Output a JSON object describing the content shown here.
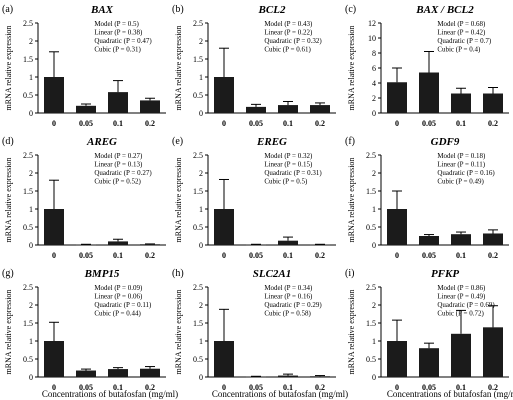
{
  "figure": {
    "xlabel": "Concentrations of butafosfan (mg/ml)",
    "ylabel": "mRNA relative expression"
  },
  "chart_data": [
    {
      "panel": "(a)",
      "title": "BAX",
      "type": "bar",
      "categories": [
        "0",
        "0.05",
        "0.1",
        "0.2"
      ],
      "values": [
        1.0,
        0.2,
        0.58,
        0.35
      ],
      "errors": [
        0.7,
        0.05,
        0.32,
        0.06
      ],
      "ylim": [
        0,
        2.5
      ],
      "yticks": [
        "0",
        "0.5",
        "1",
        "1.5",
        "2",
        "2.5"
      ],
      "stats": [
        "Model (P = 0.5)",
        "Linear (P = 0.38)",
        "Quadratic (P = 0.47)",
        "Cubic (P = 0.31)"
      ]
    },
    {
      "panel": "(b)",
      "title": "BCL2",
      "type": "bar",
      "categories": [
        "0",
        "0.05",
        "0.1",
        "0.2"
      ],
      "values": [
        1.0,
        0.17,
        0.22,
        0.22
      ],
      "errors": [
        0.8,
        0.07,
        0.1,
        0.06
      ],
      "ylim": [
        0,
        2.5
      ],
      "yticks": [
        "0",
        "0.5",
        "1",
        "1.5",
        "2",
        "2.5"
      ],
      "stats": [
        "Model (P = 0.43)",
        "Linear (P = 0.22)",
        "Quadratic (P = 0.32)",
        "Cubic (P = 0.61)"
      ]
    },
    {
      "panel": "(c)",
      "title": "BAX / BCL2",
      "type": "bar",
      "categories": [
        "0",
        "0.05",
        "0.1",
        "0.2"
      ],
      "values": [
        4.1,
        5.4,
        2.6,
        2.6
      ],
      "errors": [
        1.9,
        2.8,
        0.7,
        0.8
      ],
      "ylim": [
        0,
        12
      ],
      "yticks": [
        "0",
        "2",
        "4",
        "6",
        "8",
        "10",
        "12"
      ],
      "stats": [
        "Model (P = 0.68)",
        "Linear (P = 0.42)",
        "Quadratic (P = 0.7)",
        "Cubic (P = 0.4)"
      ]
    },
    {
      "panel": "(d)",
      "title": "AREG",
      "type": "bar",
      "categories": [
        "0",
        "0.05",
        "0.1",
        "0.2"
      ],
      "values": [
        1.0,
        0.01,
        0.1,
        0.02
      ],
      "errors": [
        0.8,
        0.01,
        0.06,
        0.01
      ],
      "ylim": [
        0,
        2.5
      ],
      "yticks": [
        "0",
        "0.5",
        "1",
        "1.5",
        "2",
        "2.5"
      ],
      "stats": [
        "Model (P = 0.27)",
        "Linear (P = 0.13)",
        "Quadratic (P = 0.27)",
        "Cubic (P = 0.52)"
      ]
    },
    {
      "panel": "(e)",
      "title": "EREG",
      "type": "bar",
      "categories": [
        "0",
        "0.05",
        "0.1",
        "0.2"
      ],
      "values": [
        1.0,
        0.01,
        0.12,
        0.01
      ],
      "errors": [
        0.82,
        0.01,
        0.1,
        0.01
      ],
      "ylim": [
        0,
        2.5
      ],
      "yticks": [
        "0",
        "0.5",
        "1",
        "1.5",
        "2",
        "2.5"
      ],
      "stats": [
        "Model (P = 0.32)",
        "Linear (P = 0.15)",
        "Quadratic (P = 0.31)",
        "Cubic (P = 0.5)"
      ]
    },
    {
      "panel": "(f)",
      "title": "GDF9",
      "type": "bar",
      "categories": [
        "0",
        "0.05",
        "0.1",
        "0.2"
      ],
      "values": [
        1.0,
        0.25,
        0.3,
        0.32
      ],
      "errors": [
        0.5,
        0.04,
        0.06,
        0.1
      ],
      "ylim": [
        0,
        2.5
      ],
      "yticks": [
        "0",
        "0.5",
        "1",
        "1.5",
        "2",
        "2.5"
      ],
      "stats": [
        "Model (P = 0.18)",
        "Linear (P = 0.11)",
        "Quadratic (P = 0.16)",
        "Cubic (P = 0.49)"
      ]
    },
    {
      "panel": "(g)",
      "title": "BMP15",
      "type": "bar",
      "categories": [
        "0",
        "0.05",
        "0.1",
        "0.2"
      ],
      "values": [
        1.0,
        0.18,
        0.22,
        0.23
      ],
      "errors": [
        0.52,
        0.04,
        0.04,
        0.06
      ],
      "ylim": [
        0,
        2.5
      ],
      "yticks": [
        "0",
        "0.5",
        "1",
        "1.5",
        "2",
        "2.5"
      ],
      "stats": [
        "Model (P = 0.09)",
        "Linear (P = 0.06)",
        "Quadratic (P = 0.11)",
        "Cubic (P = 0.44)"
      ]
    },
    {
      "panel": "(h)",
      "title": "SLC2A1",
      "type": "bar",
      "categories": [
        "0",
        "0.05",
        "0.1",
        "0.2"
      ],
      "values": [
        1.0,
        0.01,
        0.04,
        0.02
      ],
      "errors": [
        0.88,
        0.01,
        0.04,
        0.02
      ],
      "ylim": [
        0,
        2.5
      ],
      "yticks": [
        "0",
        "0.5",
        "1",
        "1.5",
        "2",
        "2.5"
      ],
      "stats": [
        "Model (P = 0.34)",
        "Linear (P = 0.16)",
        "Quadratic (P = 0.29)",
        "Cubic (P = 0.58)"
      ]
    },
    {
      "panel": "(i)",
      "title": "PFKP",
      "type": "bar",
      "categories": [
        "0",
        "0.05",
        "0.1",
        "0.2"
      ],
      "values": [
        1.0,
        0.8,
        1.2,
        1.38
      ],
      "errors": [
        0.58,
        0.14,
        0.65,
        0.6
      ],
      "ylim": [
        0,
        2.5
      ],
      "yticks": [
        "0",
        "0.5",
        "1",
        "1.5",
        "2",
        "2.5"
      ],
      "stats": [
        "Model (P = 0.86)",
        "Linear (P = 0.49)",
        "Quadratic (P = 0.69)",
        "Cubic (P = 0.72)"
      ]
    }
  ]
}
